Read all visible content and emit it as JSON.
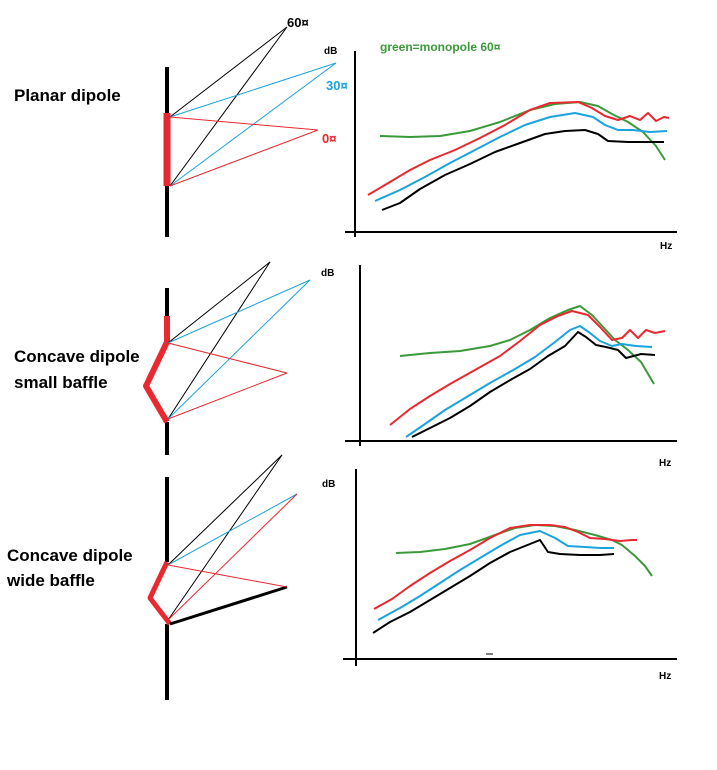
{
  "legend": "green=monopole 60¤",
  "colors": {
    "black": "#000000",
    "red": "#e8292f",
    "blue": "#1aa3dd",
    "green": "#3a9a3a"
  },
  "rows": [
    {
      "title_lines": [
        "Planar dipole"
      ],
      "y_label": "dB",
      "x_label": "Hz",
      "angle_labels": {
        "a60": "60¤",
        "a30": "30¤",
        "a0": "0¤"
      }
    },
    {
      "title_lines": [
        "Concave dipole",
        "small baffle"
      ],
      "y_label": "dB",
      "x_label": "Hz"
    },
    {
      "title_lines": [
        "Concave dipole",
        "wide baffle"
      ],
      "y_label": "dB",
      "x_label": "Hz"
    }
  ]
}
